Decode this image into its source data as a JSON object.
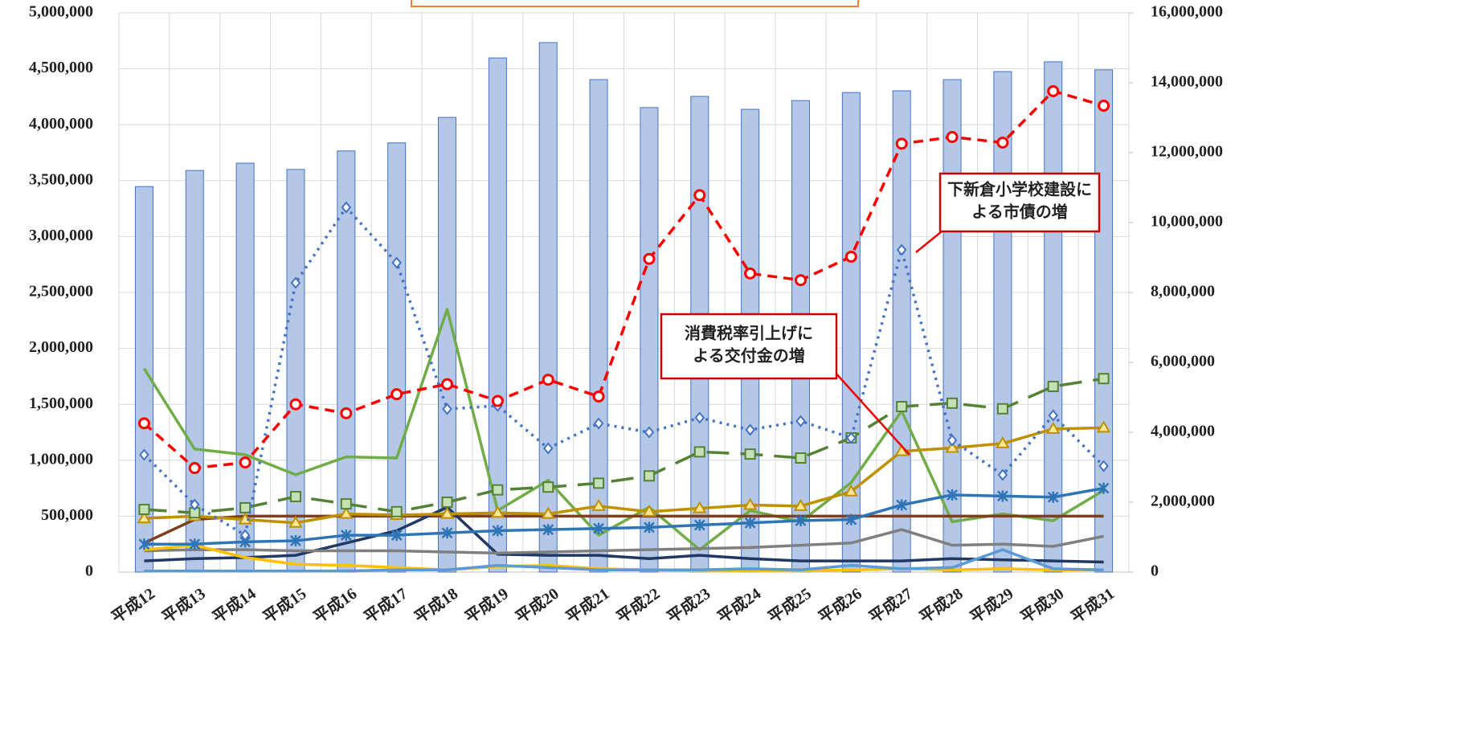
{
  "chart_data": {
    "type": "bar-line",
    "categories": [
      "平成12",
      "平成13",
      "平成14",
      "平成15",
      "平成16",
      "平成17",
      "平成18",
      "平成19",
      "平成20",
      "平成21",
      "平成22",
      "平成23",
      "平成24",
      "平成25",
      "平成26",
      "平成27",
      "平成28",
      "平成29",
      "平成30",
      "平成31"
    ],
    "ylim": [
      0,
      5000000
    ],
    "yticks": [
      {
        "value": 0,
        "label": "0"
      },
      {
        "value": 500000,
        "label": "500,000"
      },
      {
        "value": 1000000,
        "label": "1,000,000"
      },
      {
        "value": 1500000,
        "label": "1,500,000"
      },
      {
        "value": 2000000,
        "label": "2,000,000"
      },
      {
        "value": 2500000,
        "label": "2,500,000"
      },
      {
        "value": 3000000,
        "label": "3,000,000"
      },
      {
        "value": 3500000,
        "label": "3,500,000"
      },
      {
        "value": 4000000,
        "label": "4,000,000"
      },
      {
        "value": 4500000,
        "label": "4,500,000"
      },
      {
        "value": 5000000,
        "label": "5,000,000"
      }
    ],
    "y2lim": [
      0,
      16000000
    ],
    "y2ticks": [
      {
        "value": 0,
        "label": "0"
      },
      {
        "value": 2000000,
        "label": "2,000,000"
      },
      {
        "value": 4000000,
        "label": "4,000,000"
      },
      {
        "value": 6000000,
        "label": "6,000,000"
      },
      {
        "value": 8000000,
        "label": "8,000,000"
      },
      {
        "value": 10000000,
        "label": "10,000,000"
      },
      {
        "value": 12000000,
        "label": "12,000,000"
      },
      {
        "value": 14000000,
        "label": "14,000,000"
      },
      {
        "value": 16000000,
        "label": "16,000,000"
      }
    ],
    "grid": true,
    "series": [
      {
        "kind": "bar",
        "axis": "y2",
        "color": "#b4c7e7",
        "values": [
          11030000,
          11490000,
          11700000,
          11520000,
          12050000,
          12280000,
          13010000,
          14710000,
          15150000,
          14090000,
          13290000,
          13610000,
          13240000,
          13490000,
          13720000,
          13770000,
          14090000,
          14320000,
          14600000,
          14370000
        ]
      },
      {
        "kind": "line",
        "color": "#70ad47",
        "dash": "solid",
        "marker": "none",
        "values": [
          1820000,
          1100000,
          1050000,
          870000,
          1030000,
          1020000,
          2350000,
          550000,
          820000,
          330000,
          580000,
          200000,
          550000,
          450000,
          800000,
          1440000,
          450000,
          520000,
          460000,
          730000
        ]
      },
      {
        "kind": "line",
        "color": "#7f3f1f",
        "dash": "solid",
        "marker": "none",
        "values": [
          260000,
          470000,
          500000,
          500000,
          500000,
          500000,
          500000,
          500000,
          500000,
          500000,
          500000,
          500000,
          500000,
          500000,
          500000,
          500000,
          500000,
          500000,
          500000,
          500000
        ]
      },
      {
        "kind": "line",
        "color": "#203864",
        "dash": "solid",
        "marker": "none",
        "values": [
          100000,
          120000,
          130000,
          150000,
          260000,
          370000,
          580000,
          160000,
          150000,
          150000,
          120000,
          150000,
          120000,
          100000,
          100000,
          100000,
          120000,
          110000,
          100000,
          90000
        ]
      },
      {
        "kind": "line",
        "color": "#7f7f7f",
        "dash": "solid",
        "marker": "none",
        "values": [
          190000,
          200000,
          200000,
          190000,
          190000,
          190000,
          180000,
          170000,
          180000,
          190000,
          200000,
          210000,
          220000,
          240000,
          260000,
          380000,
          240000,
          250000,
          230000,
          320000
        ]
      },
      {
        "kind": "line",
        "color": "#ffc000",
        "dash": "solid",
        "marker": "none",
        "values": [
          200000,
          240000,
          130000,
          70000,
          60000,
          40000,
          20000,
          50000,
          60000,
          30000,
          20000,
          10000,
          10000,
          10000,
          20000,
          30000,
          20000,
          30000,
          20000,
          20000
        ]
      },
      {
        "kind": "line",
        "color": "#5b9bd5",
        "dash": "solid",
        "marker": "none",
        "values": [
          10000,
          10000,
          10000,
          10000,
          10000,
          20000,
          20000,
          60000,
          40000,
          20000,
          20000,
          20000,
          30000,
          20000,
          60000,
          30000,
          40000,
          200000,
          30000,
          20000
        ]
      },
      {
        "kind": "line",
        "color": "#bf9000",
        "dash": "solid",
        "marker": "triangle",
        "values": [
          480000,
          500000,
          470000,
          440000,
          520000,
          510000,
          520000,
          530000,
          520000,
          590000,
          540000,
          570000,
          600000,
          590000,
          720000,
          1080000,
          1110000,
          1150000,
          1280000,
          1290000
        ]
      },
      {
        "kind": "line",
        "color": "#2e75b6",
        "dash": "solid",
        "marker": "star",
        "values": [
          250000,
          250000,
          270000,
          280000,
          330000,
          330000,
          350000,
          370000,
          380000,
          390000,
          400000,
          420000,
          440000,
          460000,
          470000,
          600000,
          690000,
          680000,
          670000,
          750000
        ]
      },
      {
        "kind": "line",
        "color": "#548235",
        "dash": "longdash",
        "marker": "square",
        "values": [
          560000,
          530000,
          575000,
          675000,
          610000,
          540000,
          625000,
          735000,
          760000,
          795000,
          860000,
          1075000,
          1055000,
          1020000,
          1200000,
          1480000,
          1510000,
          1460000,
          1660000,
          1730000
        ]
      },
      {
        "kind": "line",
        "color": "#4472c4",
        "dash": "dotted",
        "marker": "diamond",
        "values": [
          1049000,
          603000,
          330000,
          2586000,
          3261000,
          2766000,
          1458000,
          1487000,
          1106000,
          1329000,
          1250000,
          1380000,
          1272000,
          1350000,
          1200000,
          2881000,
          1178000,
          869000,
          1401000,
          948000
        ]
      },
      {
        "kind": "line",
        "color": "#ff0000",
        "dash": "dashed",
        "marker": "circle",
        "values": [
          1330000,
          930000,
          980000,
          1500000,
          1420000,
          1590000,
          1680000,
          1530000,
          1720000,
          1570000,
          2800000,
          3370000,
          2670000,
          2610000,
          2820000,
          3830000,
          3890000,
          3840000,
          4300000,
          4170000
        ]
      }
    ],
    "annotations": [
      {
        "lines": [
          "下新倉小学校建設に",
          "よる市債の増"
        ]
      },
      {
        "lines": [
          "消費税率引上げに",
          "よる交付金の増"
        ]
      }
    ]
  }
}
